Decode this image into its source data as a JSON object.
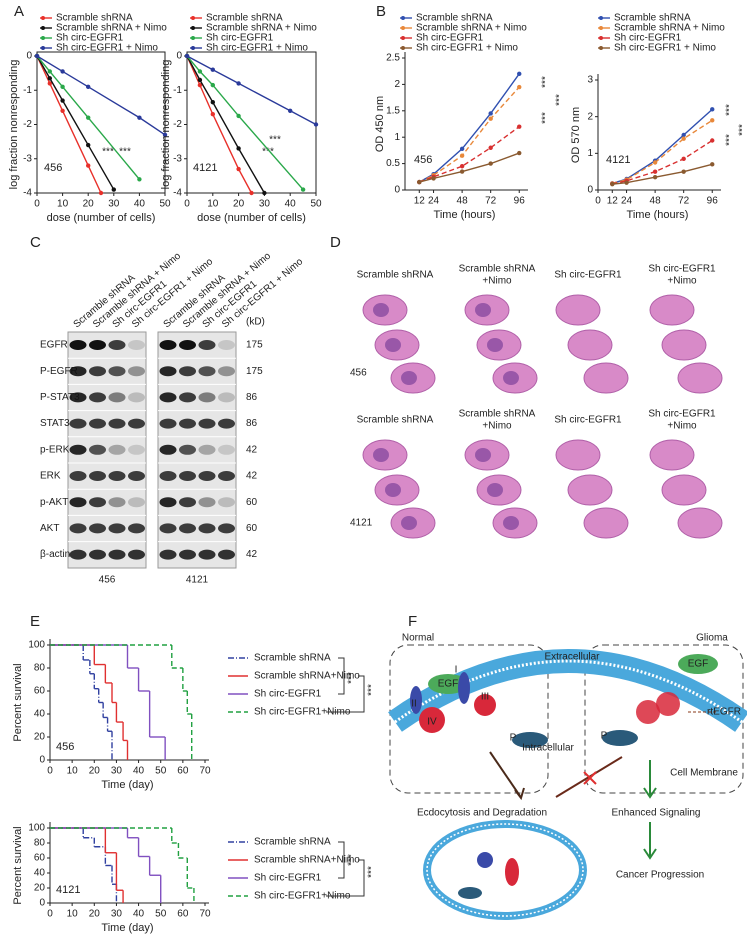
{
  "panels": [
    "A",
    "B",
    "C",
    "D",
    "E",
    "F"
  ],
  "chart_data": [
    {
      "type": "line",
      "label": "456",
      "xlabel": "dose (number of cells)",
      "ylabel": "log fraction nonresponding",
      "xlim": [
        0,
        50
      ],
      "xticks": [
        0,
        10,
        20,
        30,
        40,
        50
      ],
      "ylim": [
        -4,
        0
      ],
      "yticks": [
        0,
        -1,
        -2,
        -3,
        -4
      ],
      "annotations": [
        "***",
        "***"
      ],
      "series": [
        {
          "name": "Scramble shRNA",
          "color": "#e8302a",
          "x": [
            0,
            5,
            10,
            20,
            25
          ],
          "values": [
            0,
            -0.8,
            -1.6,
            -3.2,
            -4
          ]
        },
        {
          "name": "Scramble shRNA + Nimo",
          "color": "#111111",
          "x": [
            0,
            5,
            10,
            20,
            30
          ],
          "values": [
            0,
            -0.65,
            -1.3,
            -2.6,
            -3.9
          ]
        },
        {
          "name": "Sh circ-EGFR1",
          "color": "#2aa84a",
          "x": [
            0,
            5,
            10,
            20,
            40
          ],
          "values": [
            0,
            -0.45,
            -0.9,
            -1.8,
            -3.6
          ]
        },
        {
          "name": "Sh circ-EGFR1 + Nimo",
          "color": "#2a3a9a",
          "x": [
            0,
            10,
            20,
            40,
            50
          ],
          "values": [
            0,
            -0.45,
            -0.9,
            -1.8,
            -2.3
          ]
        }
      ]
    },
    {
      "type": "line",
      "label": "4121",
      "xlabel": "dose (number of cells)",
      "ylabel": "log fraction nonresponding",
      "xlim": [
        0,
        50
      ],
      "xticks": [
        0,
        10,
        20,
        30,
        40,
        50
      ],
      "ylim": [
        -4,
        0
      ],
      "yticks": [
        0,
        -1,
        -2,
        -3,
        -4
      ],
      "annotations": [
        "***",
        "***"
      ],
      "series": [
        {
          "name": "Scramble shRNA",
          "color": "#e8302a",
          "x": [
            0,
            5,
            10,
            20,
            25
          ],
          "values": [
            0,
            -0.85,
            -1.7,
            -3.3,
            -4
          ]
        },
        {
          "name": "Scramble shRNA + Nimo",
          "color": "#111111",
          "x": [
            0,
            5,
            10,
            20,
            30
          ],
          "values": [
            0,
            -0.7,
            -1.35,
            -2.7,
            -4
          ]
        },
        {
          "name": "Sh circ-EGFR1",
          "color": "#2aa84a",
          "x": [
            0,
            5,
            10,
            20,
            45
          ],
          "values": [
            0,
            -0.45,
            -0.85,
            -1.75,
            -3.9
          ]
        },
        {
          "name": "Sh circ-EGFR1 + Nimo",
          "color": "#2a3a9a",
          "x": [
            0,
            10,
            20,
            40,
            50
          ],
          "values": [
            0,
            -0.4,
            -0.8,
            -1.6,
            -2
          ]
        }
      ]
    },
    {
      "type": "line",
      "label": "456",
      "xlabel": "Time (hours)",
      "ylabel": "OD 450 nm",
      "xlim": [
        0,
        100
      ],
      "xticks": [
        12,
        24,
        48,
        72,
        96
      ],
      "ylim": [
        0,
        2.5
      ],
      "yticks": [
        0,
        0.5,
        1,
        1.5,
        2,
        2.5
      ],
      "annotations": [
        "***",
        "***",
        "***"
      ],
      "series": [
        {
          "name": "Scramble shRNA",
          "color": "#3050b0",
          "x": [
            12,
            24,
            48,
            72,
            96
          ],
          "values": [
            0.15,
            0.3,
            0.78,
            1.45,
            2.2
          ]
        },
        {
          "name": "Scramble shRNA + Nimo",
          "color": "#e8883a",
          "dash": "dashed",
          "x": [
            12,
            24,
            48,
            72,
            96
          ],
          "values": [
            0.15,
            0.28,
            0.65,
            1.35,
            1.95
          ]
        },
        {
          "name": "Sh circ-EGFR1",
          "color": "#d83030",
          "dash": "dashed",
          "x": [
            12,
            24,
            48,
            72,
            96
          ],
          "values": [
            0.15,
            0.25,
            0.45,
            0.8,
            1.2
          ]
        },
        {
          "name": "Sh circ-EGFR1 + Nimo",
          "color": "#8a5a30",
          "x": [
            12,
            24,
            48,
            72,
            96
          ],
          "values": [
            0.15,
            0.22,
            0.35,
            0.5,
            0.7
          ]
        }
      ]
    },
    {
      "type": "line",
      "label": "4121",
      "xlabel": "Time (hours)",
      "ylabel": "OD 570 nm",
      "xlim": [
        0,
        100
      ],
      "xticks": [
        0,
        12,
        24,
        48,
        72,
        96
      ],
      "ylim": [
        0,
        3
      ],
      "yticks": [
        0,
        1,
        2,
        3
      ],
      "annotations": [
        "***",
        "***",
        "***"
      ],
      "series": [
        {
          "name": "Scramble shRNA",
          "color": "#3050b0",
          "x": [
            12,
            24,
            48,
            72,
            96
          ],
          "values": [
            0.18,
            0.3,
            0.8,
            1.5,
            2.2
          ]
        },
        {
          "name": "Scramble shRNA + Nimo",
          "color": "#e8883a",
          "dash": "dashed",
          "x": [
            12,
            24,
            48,
            72,
            96
          ],
          "values": [
            0.18,
            0.28,
            0.75,
            1.4,
            1.9
          ]
        },
        {
          "name": "Sh circ-EGFR1",
          "color": "#d83030",
          "dash": "dashed",
          "x": [
            12,
            24,
            48,
            72,
            96
          ],
          "values": [
            0.17,
            0.25,
            0.5,
            0.85,
            1.35
          ]
        },
        {
          "name": "Sh circ-EGFR1 + Nimo",
          "color": "#8a5a30",
          "x": [
            12,
            24,
            48,
            72,
            96
          ],
          "values": [
            0.16,
            0.2,
            0.35,
            0.5,
            0.7
          ]
        }
      ]
    },
    {
      "type": "step",
      "label": "456",
      "xlabel": "Time (day)",
      "ylabel": "Percent survival",
      "xlim": [
        0,
        70
      ],
      "xticks": [
        0,
        10,
        20,
        30,
        40,
        50,
        60,
        70
      ],
      "ylim": [
        0,
        100
      ],
      "yticks": [
        0,
        20,
        40,
        60,
        80,
        100
      ],
      "annotations": [
        "***",
        "***"
      ],
      "series": [
        {
          "name": "Scramble shRNA",
          "color": "#3040a0",
          "dash": "dashdot",
          "x": [
            0,
            15,
            18,
            20,
            22,
            24,
            26,
            28
          ],
          "values": [
            100,
            87,
            75,
            62,
            50,
            37,
            25,
            0
          ]
        },
        {
          "name": "Scramble shRNA+Nimo",
          "color": "#e03030",
          "x": [
            0,
            20,
            25,
            28,
            30,
            33,
            35
          ],
          "values": [
            100,
            83,
            67,
            50,
            33,
            17,
            0
          ]
        },
        {
          "name": "Sh circ-EGFR1",
          "color": "#8050c0",
          "x": [
            0,
            35,
            40,
            45,
            52
          ],
          "values": [
            100,
            80,
            60,
            20,
            0
          ]
        },
        {
          "name": "Sh circ-EGFR1+Nimo",
          "color": "#20a040",
          "dash": "dashed",
          "x": [
            0,
            55,
            60,
            62,
            64
          ],
          "values": [
            100,
            80,
            60,
            40,
            0
          ]
        }
      ]
    },
    {
      "type": "step",
      "label": "4121",
      "xlabel": "Time (day)",
      "ylabel": "Percent survival",
      "xlim": [
        0,
        70
      ],
      "xticks": [
        0,
        10,
        20,
        30,
        40,
        50,
        60,
        70
      ],
      "ylim": [
        0,
        100
      ],
      "yticks": [
        0,
        20,
        40,
        60,
        80,
        100
      ],
      "annotations": [
        "***",
        "***"
      ],
      "series": [
        {
          "name": "Scramble shRNA",
          "color": "#3040a0",
          "dash": "dashdot",
          "x": [
            0,
            15,
            20,
            25,
            28,
            30
          ],
          "values": [
            100,
            87,
            75,
            50,
            25,
            0
          ]
        },
        {
          "name": "Scramble shRNA+Nimo",
          "color": "#e03030",
          "x": [
            0,
            25,
            30,
            33
          ],
          "values": [
            100,
            67,
            17,
            0
          ]
        },
        {
          "name": "Sh circ-EGFR1",
          "color": "#8050c0",
          "x": [
            0,
            35,
            40,
            45,
            50
          ],
          "values": [
            100,
            87,
            62,
            37,
            0
          ]
        },
        {
          "name": "Sh circ-EGFR1+Nimo",
          "color": "#20a040",
          "dash": "dashed",
          "x": [
            0,
            55,
            58,
            62,
            65
          ],
          "values": [
            100,
            80,
            60,
            20,
            0
          ]
        }
      ]
    }
  ],
  "blot": {
    "columns": [
      "Scramble shRNA",
      "Scramble shRNA + Nimo",
      "Sh circ-EGFR1",
      "Sh circ-EGFR1 + Nimo",
      "Scramble shRNA",
      "Scramble shRNA + Nimo",
      "Sh circ-EGFR1",
      "Sh circ-EGFR1 + Nimo"
    ],
    "unit": "(kD)",
    "cell_lines": [
      "456",
      "4121"
    ],
    "rows": [
      {
        "name": "EGFR",
        "kd": 175
      },
      {
        "name": "P-EGFR",
        "kd": 175
      },
      {
        "name": "P-STAT3",
        "kd": 86
      },
      {
        "name": "STAT3",
        "kd": 86
      },
      {
        "name": "p-ERK",
        "kd": 42
      },
      {
        "name": "ERK",
        "kd": 42
      },
      {
        "name": "p-AKT",
        "kd": 60
      },
      {
        "name": "AKT",
        "kd": 60
      },
      {
        "name": "β-actin",
        "kd": 42
      }
    ]
  },
  "histology": {
    "groups": [
      {
        "cell_line": "456",
        "conditions": [
          [
            "Scramble shRNA"
          ],
          [
            "Scramble shRNA",
            "+Nimo"
          ],
          [
            "Sh circ-EGFR1"
          ],
          [
            "Sh circ-EGFR1",
            "+Nimo"
          ]
        ]
      },
      {
        "cell_line": "4121",
        "conditions": [
          [
            "Scramble shRNA"
          ],
          [
            "Scramble shRNA",
            "+Nimo"
          ],
          [
            "Sh circ-EGFR1"
          ],
          [
            "Sh circ-EGFR1",
            "+Nimo"
          ]
        ]
      }
    ]
  },
  "diagram": {
    "normal": "Normal",
    "glioma": "Glioma",
    "extracellular": "Extracellular",
    "intracellular": "Intracellular",
    "egf_normal": "EGF",
    "egf_glioma": "EGF",
    "domains": [
      "I",
      "II",
      "III",
      "IV"
    ],
    "phospho_normal": "P",
    "phospho_glioma": "P",
    "rtegfr": "rtEGFR",
    "membrane": "Cell Membrane",
    "endocytosis": "Ecdocytosis and Degradation",
    "signaling": "Enhanced Signaling",
    "progression": "Cancer Progression"
  }
}
